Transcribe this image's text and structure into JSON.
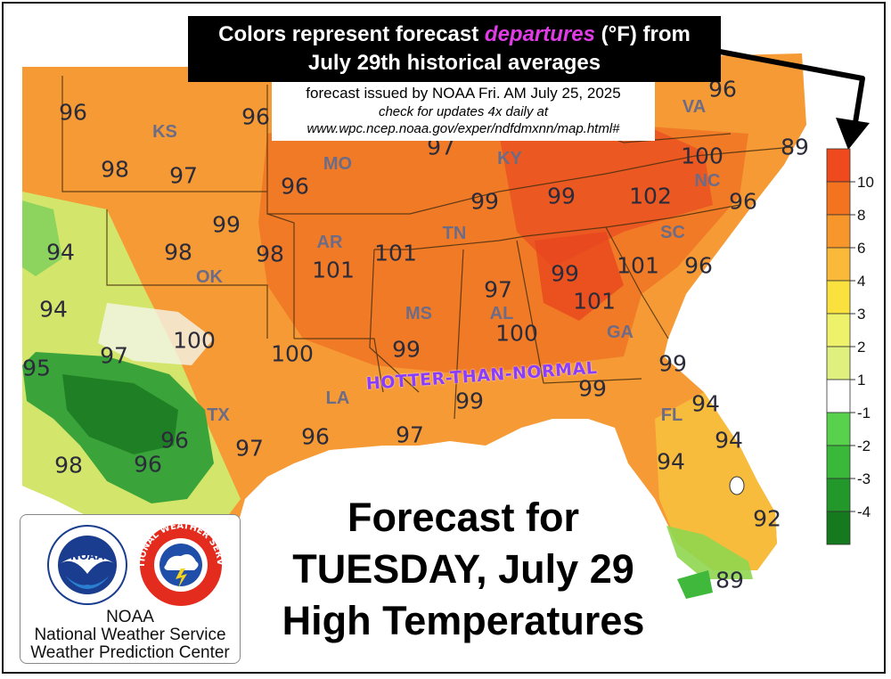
{
  "title": {
    "line1_pre": "Colors represent forecast ",
    "line1_emph": "departures",
    "line1_post": " (°F) from",
    "line2": "July 29th historical averages"
  },
  "issued": {
    "line1": "forecast issued by NOAA Fri. AM July 25, 2025",
    "line2": "check for updates 4x daily at",
    "line3": "www.wpc.ncep.noaa.gov/exper/ndfdmxnn/map.html#"
  },
  "annotation": "HOTTER-THAN-NORMAL",
  "forecast": {
    "line1": "Forecast for",
    "line2": "TUESDAY, July 29",
    "line3": "High Temperatures"
  },
  "logo": {
    "line1": "NOAA",
    "line2": "National Weather Service",
    "line3": "Weather Prediction Center",
    "noaa_mark": "NOAA",
    "nws_ring": "NATIONAL WEATHER SERVICE"
  },
  "legend": {
    "labels": [
      "10",
      "8",
      "6",
      "4",
      "3",
      "2",
      "1",
      "-1",
      "-2",
      "-3",
      "-4"
    ],
    "colors": [
      "#ee4a1e",
      "#f3731f",
      "#f7962a",
      "#fbb93a",
      "#fbe13e",
      "#eef26a",
      "#dff07e",
      "#ffffff",
      "#58d14d",
      "#39b83a",
      "#22982a",
      "#157a1e"
    ]
  },
  "states": [
    {
      "name": "KS"
    },
    {
      "name": "MO"
    },
    {
      "name": "KY"
    },
    {
      "name": "VA"
    },
    {
      "name": "NC"
    },
    {
      "name": "TN"
    },
    {
      "name": "AR"
    },
    {
      "name": "OK"
    },
    {
      "name": "SC"
    },
    {
      "name": "MS"
    },
    {
      "name": "AL"
    },
    {
      "name": "GA"
    },
    {
      "name": "LA"
    },
    {
      "name": "TX"
    },
    {
      "name": "FL"
    }
  ],
  "temps": [
    {
      "t": "96"
    },
    {
      "t": "96"
    },
    {
      "t": "98"
    },
    {
      "t": "97"
    },
    {
      "t": "96"
    },
    {
      "t": "97"
    },
    {
      "t": "96"
    },
    {
      "t": "89"
    },
    {
      "t": "100"
    },
    {
      "t": "99"
    },
    {
      "t": "99"
    },
    {
      "t": "102"
    },
    {
      "t": "96"
    },
    {
      "t": "99"
    },
    {
      "t": "94"
    },
    {
      "t": "98"
    },
    {
      "t": "98"
    },
    {
      "t": "101"
    },
    {
      "t": "101"
    },
    {
      "t": "101"
    },
    {
      "t": "96"
    },
    {
      "t": "94"
    },
    {
      "t": "99"
    },
    {
      "t": "97"
    },
    {
      "t": "101"
    },
    {
      "t": "100"
    },
    {
      "t": "95"
    },
    {
      "t": "97"
    },
    {
      "t": "100"
    },
    {
      "t": "99"
    },
    {
      "t": "100"
    },
    {
      "t": "99"
    },
    {
      "t": "99"
    },
    {
      "t": "99"
    },
    {
      "t": "94"
    },
    {
      "t": "96"
    },
    {
      "t": "97"
    },
    {
      "t": "96"
    },
    {
      "t": "97"
    },
    {
      "t": "94"
    },
    {
      "t": "98"
    },
    {
      "t": "96"
    },
    {
      "t": "94"
    },
    {
      "t": "92"
    },
    {
      "t": "89"
    }
  ]
}
